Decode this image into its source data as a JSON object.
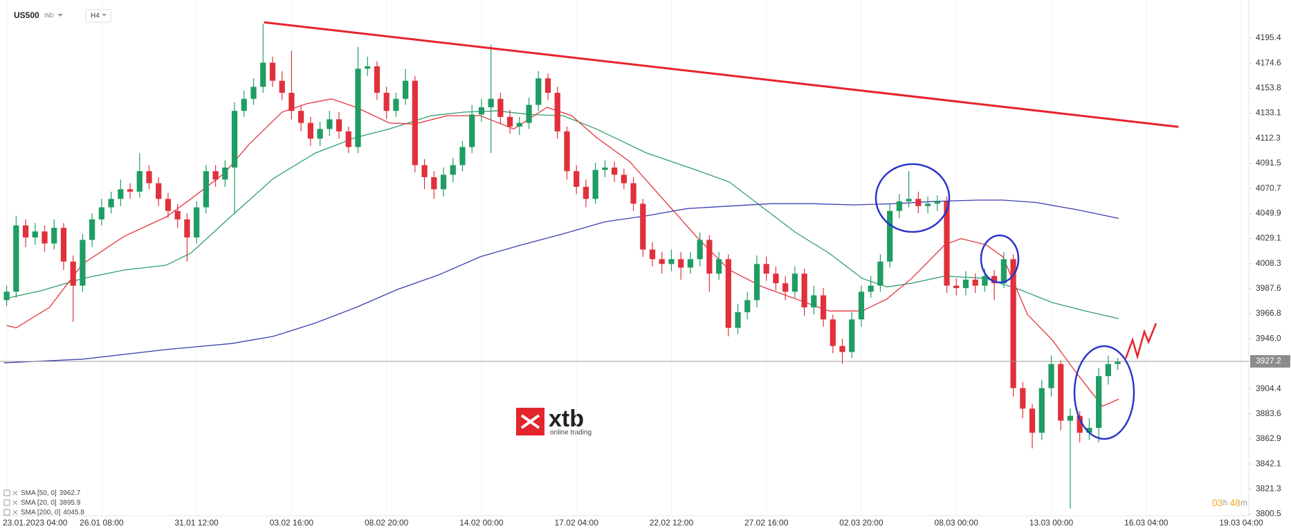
{
  "chart_data": {
    "type": "candlestick",
    "symbol": "US500",
    "market": "IND",
    "timeframe": "H4",
    "up_color": "#1f9d63",
    "down_color": "#e0303c",
    "open": [
      3978,
      3985,
      4040,
      4030,
      4035,
      4025,
      4038,
      4010,
      3990,
      4028,
      4045,
      4055,
      4062,
      4070,
      4068,
      4085,
      4075,
      4062,
      4052,
      4045,
      4030,
      4055,
      4085,
      4078,
      4088,
      4135,
      4145,
      4155,
      4175,
      4160,
      4150,
      4135,
      4125,
      4112,
      4120,
      4128,
      4118,
      4105,
      4170,
      4172,
      4150,
      4135,
      4145,
      4160,
      4090,
      4080,
      4070,
      4082,
      4090,
      4105,
      4132,
      4138,
      4145,
      4130,
      4122,
      4125,
      4140,
      4162,
      4150,
      4118,
      4085,
      4072,
      4062,
      4086,
      4088,
      4082,
      4075,
      4058,
      4020,
      4012,
      4008,
      4012,
      4005,
      4012,
      4028,
      4000,
      4012,
      3955,
      3968,
      3978,
      4008,
      4000,
      3992,
      3985,
      4000,
      3972,
      3982,
      3962,
      3940,
      3935,
      3962,
      3985,
      3990,
      4010,
      4052,
      4060,
      4062,
      4056,
      4058,
      4060,
      3990,
      3988,
      3995,
      3990,
      3998,
      3992,
      4012,
      3905,
      3888,
      3868,
      3905,
      3925,
      3878,
      3882,
      3868,
      3872,
      3915,
      3925
    ],
    "high": [
      3990,
      4048,
      4045,
      4042,
      4040,
      4045,
      4042,
      4015,
      4033,
      4050,
      4062,
      4068,
      4078,
      4075,
      4100,
      4090,
      4080,
      4067,
      4058,
      4050,
      4060,
      4090,
      4090,
      4094,
      4142,
      4152,
      4162,
      4207,
      4180,
      4168,
      4185,
      4140,
      4130,
      4126,
      4135,
      4134,
      4122,
      4188,
      4180,
      4176,
      4155,
      4150,
      4170,
      4164,
      4095,
      4085,
      4088,
      4096,
      4110,
      4140,
      4145,
      4190,
      4150,
      4136,
      4130,
      4146,
      4168,
      4166,
      4155,
      4122,
      4090,
      4078,
      4092,
      4094,
      4093,
      4087,
      4080,
      4062,
      4026,
      4018,
      4020,
      4018,
      4018,
      4034,
      4032,
      4018,
      4016,
      3975,
      3985,
      4015,
      4014,
      4006,
      3998,
      4006,
      4004,
      3990,
      3988,
      3966,
      3946,
      3968,
      3990,
      3998,
      4016,
      4058,
      4066,
      4085,
      4068,
      4064,
      4065,
      4064,
      3996,
      4002,
      4000,
      4004,
      4003,
      4018,
      4016,
      3910,
      3892,
      3912,
      3932,
      3928,
      3888,
      3886,
      3880,
      3922,
      3932,
      3930
    ],
    "low": [
      3973,
      3980,
      4022,
      4024,
      4018,
      4020,
      4003,
      3960,
      3985,
      4022,
      4040,
      4050,
      4056,
      4062,
      4063,
      4070,
      4056,
      4046,
      4038,
      4010,
      4025,
      4050,
      4072,
      4072,
      4050,
      4130,
      4140,
      4150,
      4155,
      4144,
      4128,
      4118,
      4106,
      4106,
      4114,
      4112,
      4100,
      4100,
      4164,
      4144,
      4128,
      4130,
      4140,
      4084,
      4070,
      4062,
      4064,
      4076,
      4085,
      4100,
      4126,
      4100,
      4124,
      4116,
      4115,
      4120,
      4135,
      4144,
      4112,
      4078,
      4066,
      4055,
      4058,
      4080,
      4076,
      4070,
      4052,
      4014,
      4006,
      4000,
      4002,
      3995,
      4000,
      4006,
      3985,
      3995,
      3948,
      3950,
      3962,
      3972,
      3994,
      3986,
      3978,
      3980,
      3965,
      3966,
      3956,
      3934,
      3925,
      3930,
      3956,
      3980,
      3985,
      4005,
      4046,
      4055,
      4050,
      4050,
      4052,
      3984,
      3982,
      3982,
      3984,
      3985,
      3978,
      3988,
      3898,
      3880,
      3855,
      3862,
      3898,
      3870,
      3805,
      3860,
      3862,
      3860,
      3908,
      3920
    ],
    "close": [
      3985,
      4040,
      4030,
      4035,
      4025,
      4038,
      4010,
      3990,
      4028,
      4045,
      4055,
      4062,
      4070,
      4068,
      4085,
      4075,
      4062,
      4052,
      4045,
      4030,
      4055,
      4085,
      4078,
      4088,
      4135,
      4145,
      4155,
      4175,
      4160,
      4150,
      4135,
      4125,
      4112,
      4120,
      4128,
      4118,
      4105,
      4170,
      4172,
      4150,
      4135,
      4145,
      4160,
      4090,
      4080,
      4070,
      4082,
      4090,
      4105,
      4132,
      4138,
      4145,
      4130,
      4122,
      4125,
      4140,
      4162,
      4150,
      4118,
      4085,
      4072,
      4062,
      4086,
      4088,
      4082,
      4075,
      4058,
      4020,
      4012,
      4008,
      4012,
      4005,
      4012,
      4028,
      4000,
      4012,
      3955,
      3968,
      3978,
      4008,
      4000,
      3992,
      3985,
      4000,
      3972,
      3982,
      3962,
      3940,
      3935,
      3962,
      3985,
      3990,
      4010,
      4052,
      4060,
      4062,
      4056,
      4058,
      4060,
      3990,
      3988,
      3995,
      3990,
      3998,
      3992,
      4012,
      3905,
      3888,
      3868,
      3905,
      3925,
      3878,
      3882,
      3868,
      3872,
      3915,
      3925,
      3927.2
    ],
    "xlim": [
      -0.7,
      130.8
    ],
    "xticks": [
      {
        "value": 0,
        "label": "23.01.2023 04:00"
      },
      {
        "value": 10,
        "label": "26.01 08:00"
      },
      {
        "value": 20,
        "label": "31.01 12:00"
      },
      {
        "value": 30,
        "label": "03.02 16:00"
      },
      {
        "value": 40,
        "label": "08.02 20:00"
      },
      {
        "value": 50,
        "label": "14.02 00:00"
      },
      {
        "value": 60,
        "label": "17.02 04:00"
      },
      {
        "value": 70,
        "label": "22.02 12:00"
      },
      {
        "value": 80,
        "label": "27.02 16:00"
      },
      {
        "value": 90,
        "label": "02.03 20:00"
      },
      {
        "value": 100,
        "label": "08.03 00:00"
      },
      {
        "value": 110,
        "label": "13.03 00:00"
      },
      {
        "value": 120,
        "label": "16.03 04:00"
      },
      {
        "value": 130,
        "label": "19.03 04:00"
      }
    ],
    "ylim": [
      3799.1,
      4227.0
    ],
    "yticks": [
      4195.4,
      4174.6,
      4153.8,
      4133.1,
      4112.3,
      4091.5,
      4070.7,
      4049.9,
      4029.1,
      4008.3,
      3987.6,
      3966.8,
      {
        "value": 3946.0,
        "label": "3946.0"
      },
      3904.4,
      3883.6,
      3862.9,
      3842.1,
      3821.3,
      3800.5
    ],
    "series": [
      {
        "name": "SMA [50, 0]",
        "color": "#2e9e6e",
        "x": [
          -0.3,
          3.7,
          8.0,
          12.4,
          16.8,
          19.4,
          23.7,
          28.1,
          32.5,
          36.8,
          40.3,
          44.7,
          48.2,
          51.7,
          55.1,
          58.6,
          62.1,
          67.4,
          72.6,
          76.1,
          79.6,
          83.1,
          86.6,
          90.1,
          92.7,
          95.3,
          98.8,
          103.1,
          106.6,
          110.1,
          113.6,
          117.1
        ],
        "values": [
          3979,
          3986,
          3996,
          4003,
          4007,
          4017,
          4048,
          4079,
          4100,
          4113,
          4120,
          4131,
          4134,
          4135,
          4132,
          4131,
          4120,
          4100,
          4086,
          4076,
          4055,
          4034,
          4017,
          3996,
          3989,
          3992,
          3998,
          3996,
          3987,
          3976,
          3969,
          3962.7
        ]
      },
      {
        "name": "SMA [20, 0]",
        "color": "#e3343c",
        "x": [
          0,
          1.0,
          4.5,
          8.0,
          12.4,
          16.8,
          19.4,
          22.9,
          25.5,
          29.0,
          31.6,
          34.2,
          36.8,
          40.3,
          42.9,
          46.4,
          49.9,
          53.4,
          56.9,
          59.5,
          62.1,
          65.6,
          69.1,
          72.6,
          76.1,
          79.6,
          83.1,
          86.6,
          90.1,
          92.7,
          95.3,
          98.8,
          100.5,
          103.1,
          104.9,
          107.5,
          110.1,
          112.7,
          115.4,
          117.1
        ],
        "values": [
          3957,
          3955,
          3972,
          4008,
          4031,
          4047,
          4062,
          4083,
          4107,
          4134,
          4141,
          4145,
          4138,
          4125,
          4124,
          4131,
          4131,
          4120,
          4138,
          4131,
          4113,
          4093,
          4062,
          4031,
          4003,
          3989,
          3979,
          3969,
          3969,
          3979,
          3996,
          4024,
          4029,
          4024,
          4014,
          3966,
          3945,
          3917,
          3890,
          3895.9
        ]
      },
      {
        "name": "SMA [200, 0]",
        "color": "#3a3fb0",
        "x": [
          -0.3,
          8.0,
          16.8,
          23.7,
          28.1,
          32.5,
          36.8,
          41.2,
          45.5,
          49.9,
          54.3,
          58.6,
          63.0,
          67.4,
          71.7,
          76.1,
          80.5,
          84.8,
          89.2,
          93.5,
          97.9,
          102.3,
          104.9,
          108.4,
          112.7,
          117.1
        ],
        "values": [
          3926,
          3929,
          3937,
          3942,
          3948,
          3959,
          3972,
          3987,
          3999,
          4014,
          4024,
          4033,
          4043,
          4048,
          4054,
          4056,
          4058,
          4058,
          4057,
          4058,
          4060,
          4061,
          4061,
          4059,
          4053,
          4045.8
        ]
      }
    ],
    "trendline": {
      "color": "#e8222a",
      "x": [
        27.1,
        123.4
      ],
      "values": [
        4208.5,
        4121.8
      ]
    },
    "countdown": {
      "hours": "03",
      "hours_unit": "h",
      "minutes": "48",
      "minutes_unit": "m"
    }
  },
  "branding": {
    "logo": "xtb",
    "tagline": "online trading"
  }
}
